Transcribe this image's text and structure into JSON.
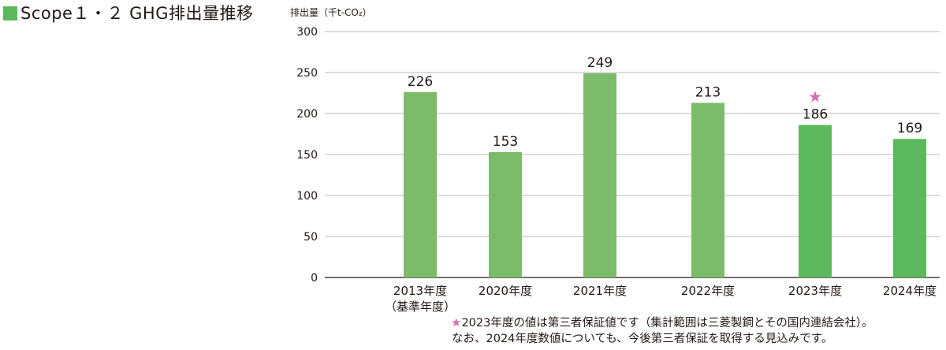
{
  "title": "Scope１・２ GHG排出量推移",
  "colors": {
    "title_marker": "#5cb85c",
    "bar": "#7cbb6a",
    "bar_highlight": "#5cb85c",
    "star": "#d36fae",
    "grid": "#a0a0a0",
    "axis": "#231815"
  },
  "chart_data": {
    "type": "bar",
    "ylabel": "排出量（千t-CO₂）",
    "ylim": [
      0,
      300
    ],
    "yticks": [
      0,
      50,
      100,
      150,
      200,
      250,
      300
    ],
    "grid": true,
    "categories": [
      [
        "2013年度",
        "（基準年度）"
      ],
      [
        "2020年度"
      ],
      [
        "2021年度"
      ],
      [
        "2022年度"
      ],
      [
        "2023年度"
      ],
      [
        "2024年度"
      ]
    ],
    "values": [
      226,
      153,
      249,
      213,
      186,
      169
    ],
    "starred_index": 4,
    "highlighted_indices": [
      4,
      5
    ]
  },
  "footnote": {
    "star": "★",
    "line1": "2023年度の値は第三者保証値です（集計範囲は三菱製鋼とその国内連結会社）。",
    "line2": "なお、2024年度数値についても、今後第三者保証を取得する見込みです。"
  }
}
